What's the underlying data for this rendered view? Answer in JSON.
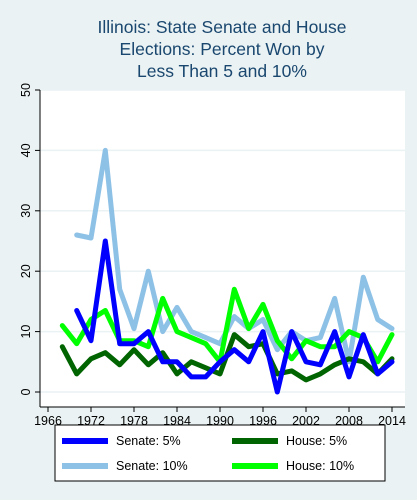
{
  "chart_data": {
    "type": "line",
    "title_lines": [
      "Illinois: State Senate and House",
      "Elections: Percent Won by",
      "Less Than 5 and 10%"
    ],
    "xlabel": "",
    "ylabel": "",
    "xlim": [
      1966,
      2014
    ],
    "ylim": [
      0,
      50
    ],
    "x_ticks": [
      1966,
      1972,
      1978,
      1984,
      1990,
      1996,
      2002,
      2008,
      2014
    ],
    "y_ticks": [
      0,
      10,
      20,
      30,
      40,
      50
    ],
    "grid": true,
    "legend_position": "bottom",
    "series": [
      {
        "name": "Senate: 5%",
        "color": "#0000ff",
        "x": [
          1970,
          1972,
          1974,
          1976,
          1978,
          1980,
          1982,
          1984,
          1986,
          1988,
          1990,
          1992,
          1994,
          1996,
          1998,
          2000,
          2002,
          2004,
          2006,
          2008,
          2010,
          2012,
          2014
        ],
        "y": [
          13.5,
          8.5,
          25,
          8,
          8,
          10,
          5,
          5,
          2.5,
          2.5,
          5,
          7,
          5,
          10,
          0,
          10,
          5,
          4.5,
          10,
          2.5,
          9.5,
          3,
          5
        ]
      },
      {
        "name": "House: 5%",
        "color": "#006400",
        "x": [
          1968,
          1970,
          1972,
          1974,
          1976,
          1978,
          1980,
          1982,
          1984,
          1986,
          1988,
          1990,
          1992,
          1994,
          1996,
          1998,
          2000,
          2002,
          2004,
          2006,
          2008,
          2010,
          2012,
          2014
        ],
        "y": [
          7.5,
          3,
          5.5,
          6.5,
          4.5,
          7,
          4.5,
          6.5,
          3,
          5,
          4,
          3,
          9.5,
          7.5,
          8,
          3,
          3.5,
          2,
          3,
          4.5,
          5.5,
          5,
          3,
          5.5
        ]
      },
      {
        "name": "Senate: 10%",
        "color": "#8ec1e6",
        "x": [
          1970,
          1972,
          1974,
          1976,
          1978,
          1980,
          1982,
          1984,
          1986,
          1988,
          1990,
          1992,
          1994,
          1996,
          1998,
          2000,
          2002,
          2004,
          2006,
          2008,
          2010,
          2012,
          2014
        ],
        "y": [
          26,
          25.5,
          40,
          17,
          10.5,
          20,
          10,
          14,
          10,
          9,
          8,
          12.5,
          10.5,
          12,
          7,
          10,
          8.5,
          9,
          15.5,
          5,
          19,
          12,
          10.5
        ]
      },
      {
        "name": "House: 10%",
        "color": "#00ff00",
        "x": [
          1968,
          1970,
          1972,
          1974,
          1976,
          1978,
          1980,
          1982,
          1984,
          1986,
          1988,
          1990,
          1992,
          1994,
          1996,
          1998,
          2000,
          2002,
          2004,
          2006,
          2008,
          2010,
          2012,
          2014
        ],
        "y": [
          11,
          8,
          12,
          13.5,
          8.5,
          8.5,
          7.5,
          15.5,
          10,
          9,
          8,
          5,
          17,
          10.5,
          14.5,
          8.5,
          5.5,
          8.5,
          7.5,
          7.5,
          10,
          9,
          5,
          9.5
        ]
      }
    ],
    "legend": [
      {
        "label": "Senate: 5%",
        "series": 0
      },
      {
        "label": "House: 5%",
        "series": 1
      },
      {
        "label": "Senate: 10%",
        "series": 2
      },
      {
        "label": "House: 10%",
        "series": 3
      }
    ]
  },
  "colors": {
    "background": "#eaf2f3",
    "plot_area": "#ffffff",
    "gridline": "#eaf2f3",
    "title": "#1a476f",
    "axis": "#000000"
  }
}
